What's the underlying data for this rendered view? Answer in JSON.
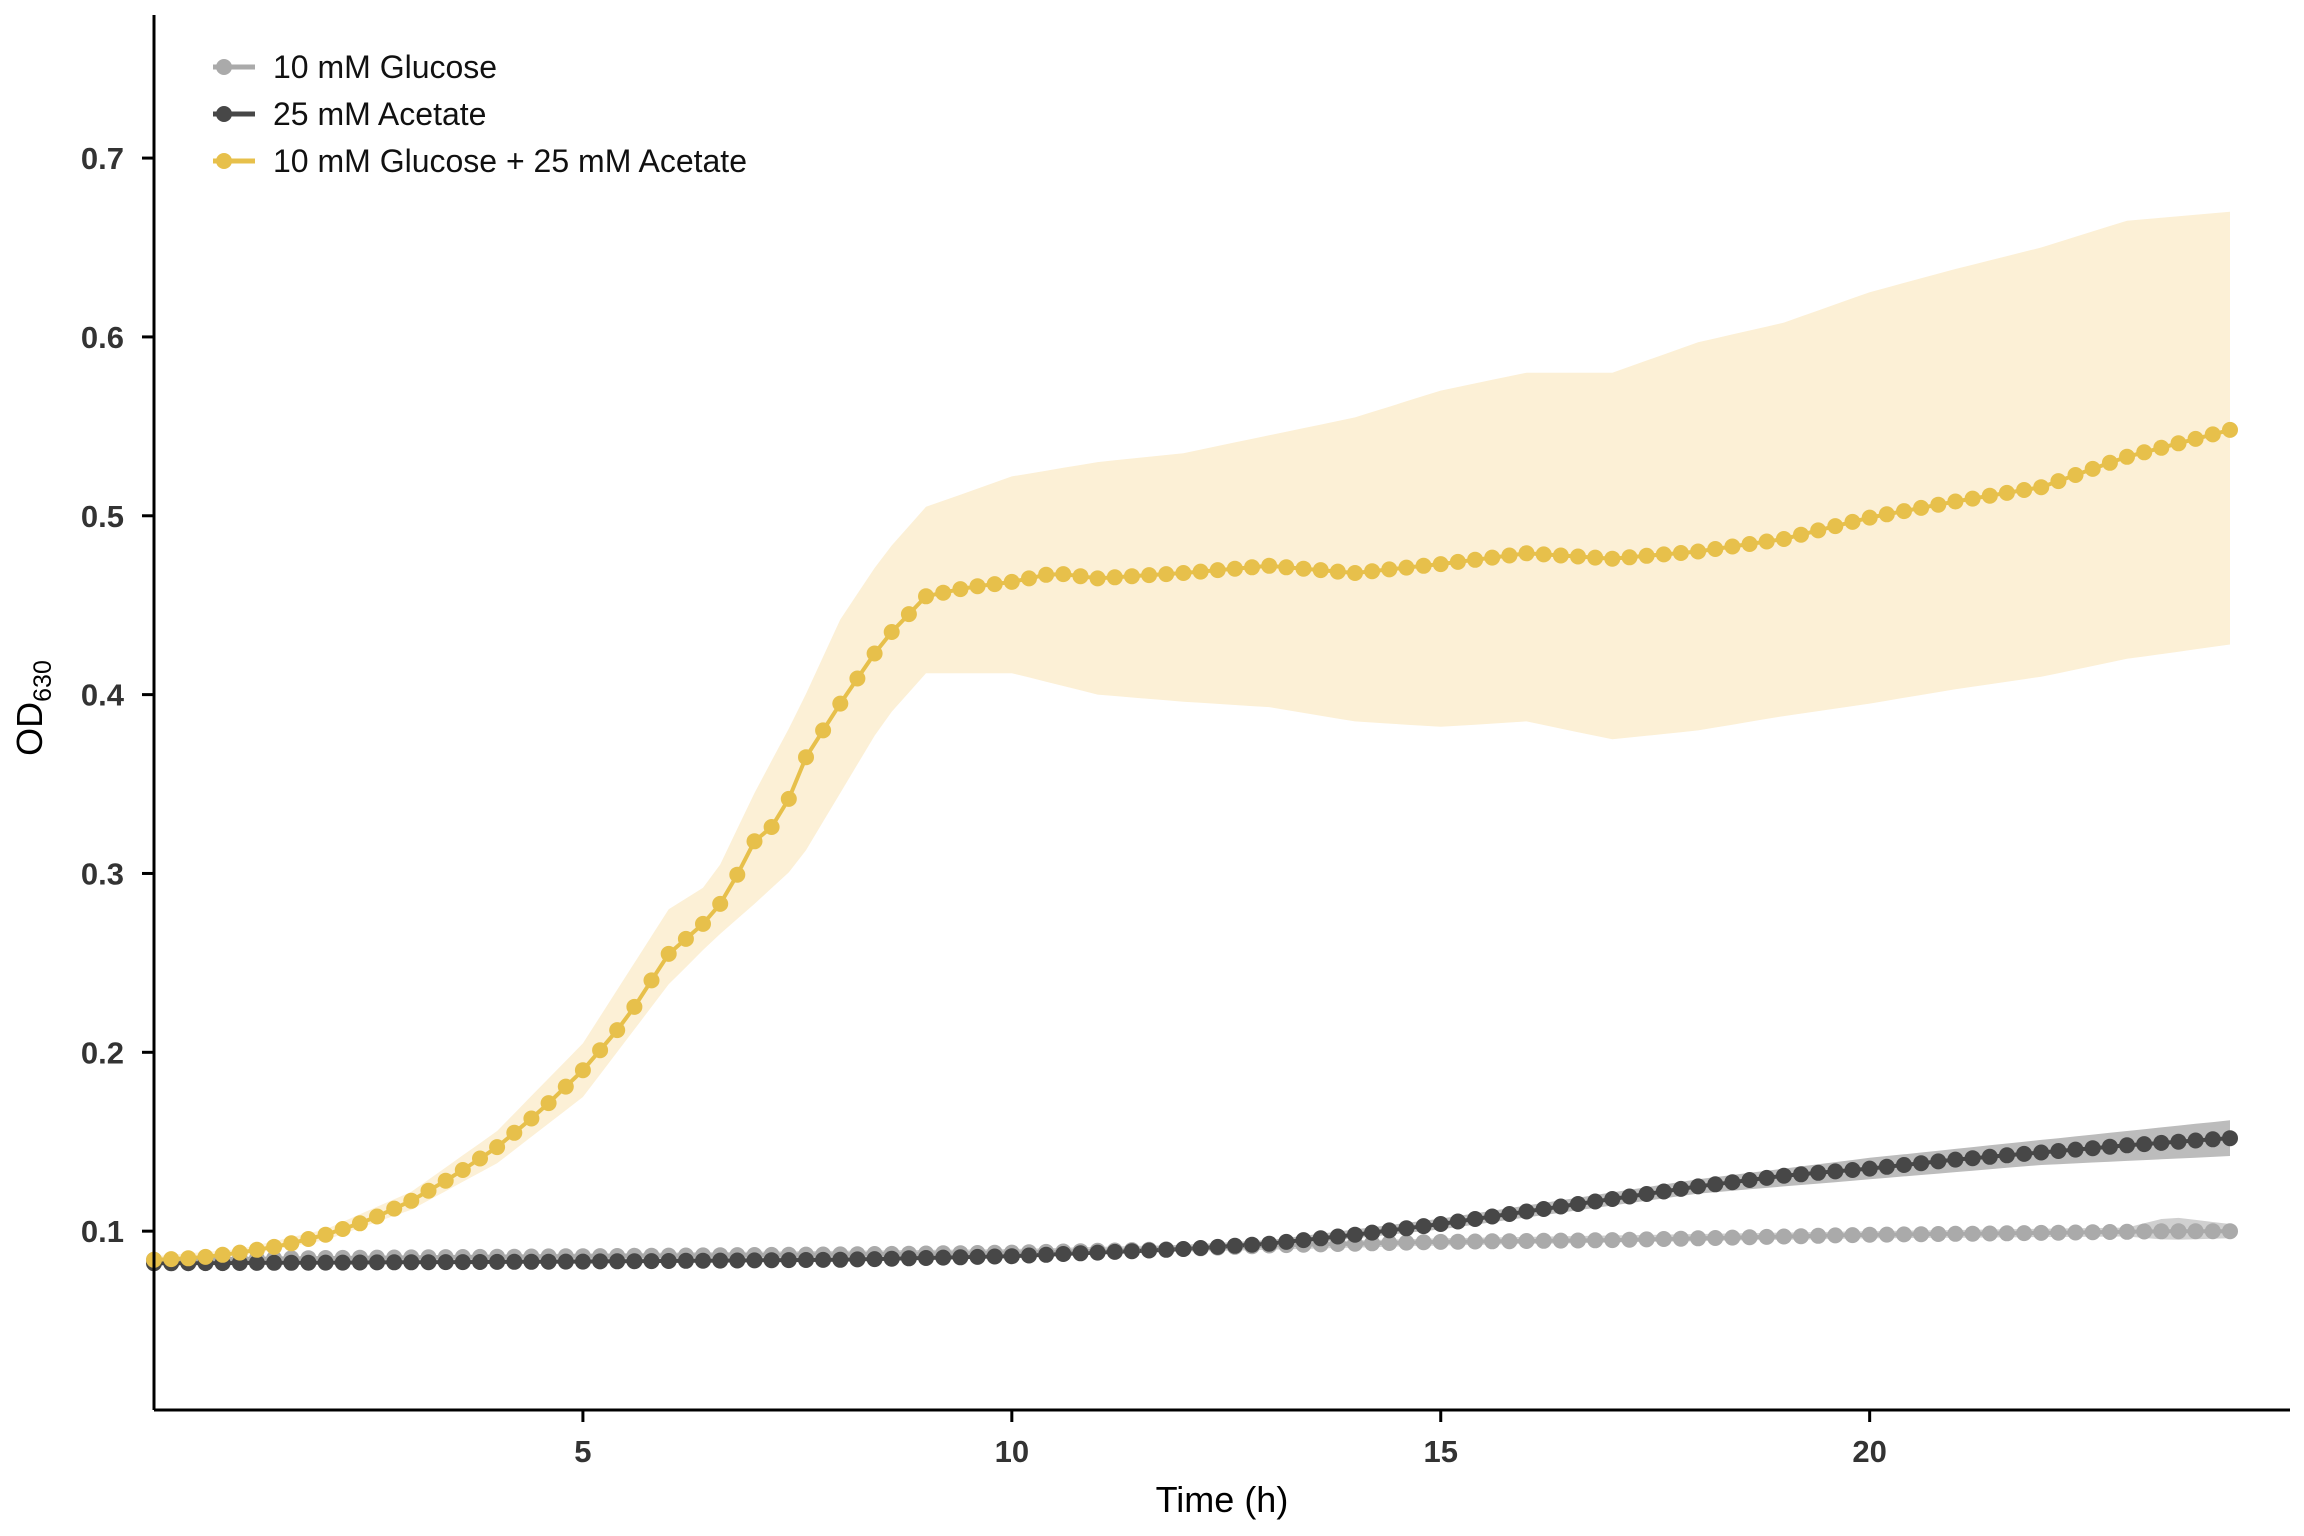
{
  "chart_data": {
    "type": "line",
    "title": "",
    "xlabel": "Time (h)",
    "ylabel": {
      "main": "OD",
      "sub": "630"
    },
    "xlim": [
      0,
      24.9
    ],
    "ylim": [
      0,
      0.78
    ],
    "xticks": [
      5,
      10,
      15,
      20
    ],
    "yticks": [
      0.1,
      0.2,
      0.3,
      0.4,
      0.5,
      0.6,
      0.7
    ],
    "grid": false,
    "legend_position": "top-left",
    "series": [
      {
        "name": "10 mM Glucose",
        "color": "#aaaaaa",
        "band_color": "#d0d0d0",
        "points": [
          [
            0,
            0.084
          ],
          [
            2,
            0.085
          ],
          [
            5,
            0.086
          ],
          [
            8,
            0.087
          ],
          [
            10,
            0.088
          ],
          [
            12,
            0.09
          ],
          [
            13,
            0.092
          ],
          [
            14,
            0.093
          ],
          [
            15,
            0.094
          ],
          [
            17,
            0.095
          ],
          [
            18,
            0.096
          ],
          [
            19,
            0.097
          ],
          [
            20,
            0.098
          ],
          [
            22,
            0.099
          ],
          [
            23.5,
            0.1
          ],
          [
            24.2,
            0.1
          ]
        ],
        "band": [
          [
            0,
            0.083,
            0.085
          ],
          [
            10,
            0.086,
            0.09
          ],
          [
            15,
            0.092,
            0.096
          ],
          [
            20,
            0.096,
            0.1
          ],
          [
            23,
            0.097,
            0.102
          ],
          [
            23.5,
            0.095,
            0.108
          ],
          [
            24.2,
            0.096,
            0.104
          ]
        ]
      },
      {
        "name": "25 mM Acetate",
        "color": "#474747",
        "band_color": "#bcbcbc",
        "points": [
          [
            0,
            0.082
          ],
          [
            5,
            0.083
          ],
          [
            8,
            0.084
          ],
          [
            10,
            0.086
          ],
          [
            11,
            0.088
          ],
          [
            12,
            0.09
          ],
          [
            13,
            0.093
          ],
          [
            14,
            0.098
          ],
          [
            15,
            0.104
          ],
          [
            16,
            0.111
          ],
          [
            17,
            0.118
          ],
          [
            18,
            0.125
          ],
          [
            19,
            0.131
          ],
          [
            20,
            0.135
          ],
          [
            21,
            0.14
          ],
          [
            22,
            0.144
          ],
          [
            23,
            0.148
          ],
          [
            24.2,
            0.152
          ]
        ],
        "band": [
          [
            0,
            0.081,
            0.083
          ],
          [
            10,
            0.085,
            0.087
          ],
          [
            13,
            0.091,
            0.095
          ],
          [
            15,
            0.101,
            0.107
          ],
          [
            18,
            0.121,
            0.129
          ],
          [
            20,
            0.129,
            0.141
          ],
          [
            22,
            0.137,
            0.151
          ],
          [
            24.2,
            0.142,
            0.162
          ]
        ]
      },
      {
        "name": "10 mM Glucose + 25 mM Acetate",
        "color": "#e7c04b",
        "band_color": "#fcf0d6",
        "points": [
          [
            0,
            0.084
          ],
          [
            0.5,
            0.085
          ],
          [
            1,
            0.088
          ],
          [
            1.5,
            0.092
          ],
          [
            2,
            0.098
          ],
          [
            2.5,
            0.106
          ],
          [
            3,
            0.117
          ],
          [
            3.5,
            0.131
          ],
          [
            4,
            0.147
          ],
          [
            4.5,
            0.167
          ],
          [
            5,
            0.19
          ],
          [
            5.5,
            0.218
          ],
          [
            6,
            0.255
          ],
          [
            6.5,
            0.276
          ],
          [
            6.7,
            0.29
          ],
          [
            7,
            0.318
          ],
          [
            7.3,
            0.33
          ],
          [
            7.6,
            0.365
          ],
          [
            8,
            0.395
          ],
          [
            8.5,
            0.43
          ],
          [
            9,
            0.455
          ],
          [
            9.5,
            0.46
          ],
          [
            10,
            0.463
          ],
          [
            10.5,
            0.468
          ],
          [
            11,
            0.465
          ],
          [
            12,
            0.468
          ],
          [
            13,
            0.472
          ],
          [
            14,
            0.468
          ],
          [
            15,
            0.473
          ],
          [
            16,
            0.479
          ],
          [
            17,
            0.476
          ],
          [
            18,
            0.48
          ],
          [
            19,
            0.487
          ],
          [
            20,
            0.499
          ],
          [
            21,
            0.508
          ],
          [
            22,
            0.516
          ],
          [
            23,
            0.533
          ],
          [
            24.2,
            0.548
          ]
        ],
        "band": [
          [
            0,
            0.082,
            0.086
          ],
          [
            1,
            0.086,
            0.09
          ],
          [
            2,
            0.095,
            0.101
          ],
          [
            3,
            0.112,
            0.122
          ],
          [
            4,
            0.138,
            0.156
          ],
          [
            5,
            0.175,
            0.205
          ],
          [
            6,
            0.238,
            0.28
          ],
          [
            6.5,
            0.262,
            0.295
          ],
          [
            7,
            0.283,
            0.345
          ],
          [
            7.5,
            0.305,
            0.39
          ],
          [
            8,
            0.345,
            0.442
          ],
          [
            8.5,
            0.385,
            0.478
          ],
          [
            9,
            0.412,
            0.505
          ],
          [
            10,
            0.412,
            0.522
          ],
          [
            11,
            0.4,
            0.53
          ],
          [
            12,
            0.396,
            0.535
          ],
          [
            13,
            0.393,
            0.545
          ],
          [
            14,
            0.385,
            0.555
          ],
          [
            15,
            0.382,
            0.57
          ],
          [
            16,
            0.385,
            0.58
          ],
          [
            17,
            0.375,
            0.58
          ],
          [
            18,
            0.38,
            0.597
          ],
          [
            19,
            0.388,
            0.608
          ],
          [
            20,
            0.395,
            0.625
          ],
          [
            21,
            0.403,
            0.638
          ],
          [
            22,
            0.41,
            0.65
          ],
          [
            23,
            0.42,
            0.665
          ],
          [
            24.2,
            0.428,
            0.67
          ]
        ]
      }
    ]
  }
}
